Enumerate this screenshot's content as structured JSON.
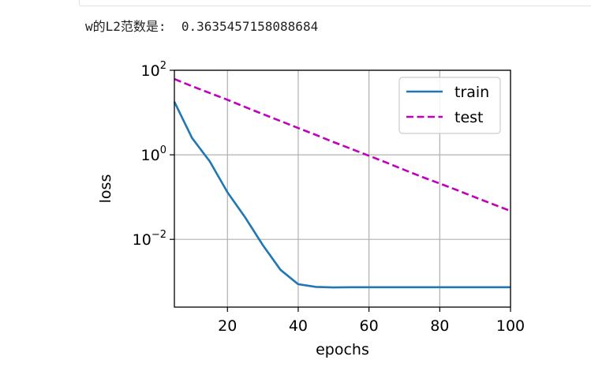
{
  "output": {
    "label": "w的L2范数是:",
    "value": "0.3635457158088684"
  },
  "colors": {
    "train": "#1f77b4",
    "test": "#bf00bf",
    "grid": "#b0b0b0"
  },
  "chart_data": {
    "type": "line",
    "title": "",
    "xlabel": "epochs",
    "ylabel": "loss",
    "xlim": [
      5,
      100
    ],
    "ylim": [
      0.00025,
      100
    ],
    "yscale": "log",
    "grid": true,
    "legend_position": "top-right",
    "x_ticks": [
      20,
      40,
      60,
      80,
      100
    ],
    "y_ticks": [
      {
        "value": 0.01,
        "base": "10",
        "exp": "−2"
      },
      {
        "value": 1,
        "base": "10",
        "exp": "0"
      },
      {
        "value": 100,
        "base": "10",
        "exp": "2"
      }
    ],
    "series": [
      {
        "name": "train",
        "style": "solid",
        "x": [
          5,
          10,
          15,
          20,
          25,
          30,
          35,
          40,
          45,
          50,
          55,
          60,
          65,
          70,
          75,
          80,
          85,
          90,
          95,
          100
        ],
        "y": [
          18,
          2.5,
          0.7,
          0.13,
          0.033,
          0.0073,
          0.0019,
          0.00087,
          0.00075,
          0.00073,
          0.00074,
          0.00074,
          0.00074,
          0.00074,
          0.00074,
          0.00074,
          0.00074,
          0.00074,
          0.00074,
          0.00074
        ]
      },
      {
        "name": "test",
        "style": "dashed",
        "x": [
          5,
          10,
          15,
          20,
          25,
          30,
          35,
          40,
          45,
          50,
          55,
          60,
          65,
          70,
          75,
          80,
          85,
          90,
          95,
          100
        ],
        "y": [
          62,
          42,
          29,
          20,
          13.5,
          9.2,
          6.3,
          4.3,
          2.95,
          2.0,
          1.38,
          0.95,
          0.65,
          0.44,
          0.3,
          0.21,
          0.145,
          0.099,
          0.068,
          0.047
        ]
      }
    ]
  }
}
